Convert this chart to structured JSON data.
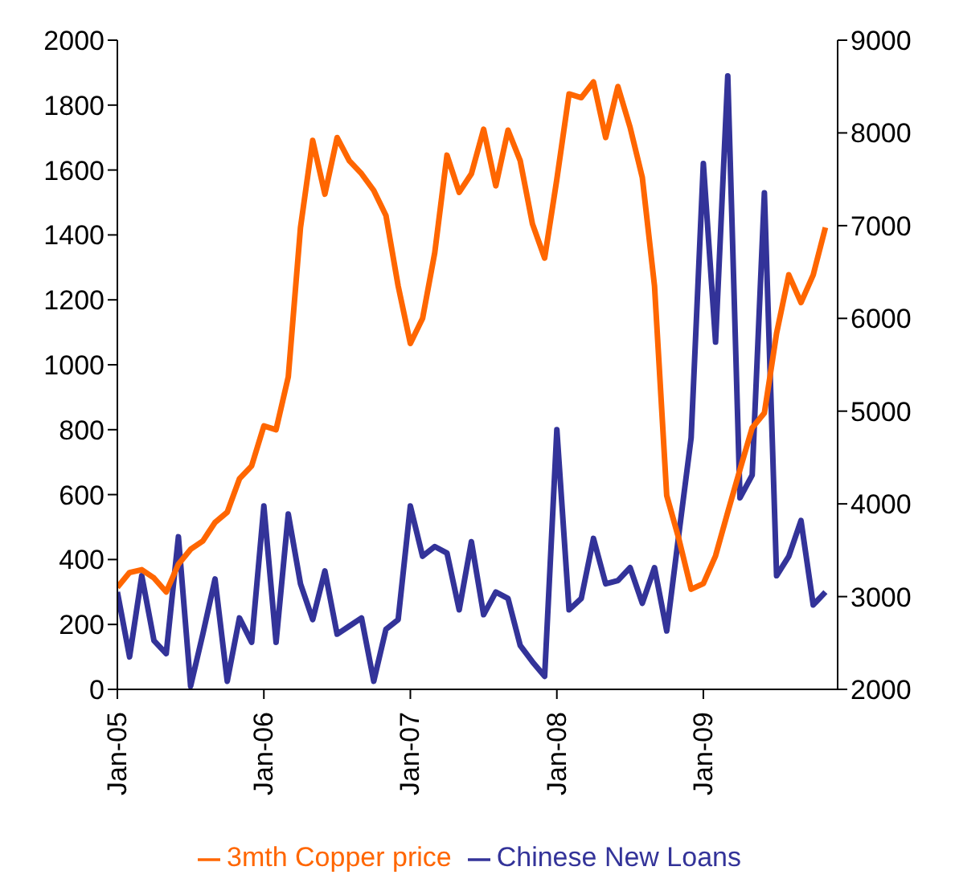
{
  "chart_data": {
    "type": "line",
    "categories": [
      "Jan-05",
      null,
      null,
      null,
      null,
      null,
      null,
      null,
      null,
      null,
      null,
      null,
      "Jan-06",
      null,
      null,
      null,
      null,
      null,
      null,
      null,
      null,
      null,
      null,
      null,
      "Jan-07",
      null,
      null,
      null,
      null,
      null,
      null,
      null,
      null,
      null,
      null,
      null,
      "Jan-08",
      null,
      null,
      null,
      null,
      null,
      null,
      null,
      null,
      null,
      null,
      null,
      "Jan-09",
      null,
      null,
      null,
      null,
      null,
      null,
      null,
      null,
      null,
      null
    ],
    "series": [
      {
        "name": "Chinese New  Loans",
        "color": "#333399",
        "values": [
          300,
          100,
          350,
          150,
          110,
          470,
          10,
          170,
          340,
          25,
          220,
          145,
          565,
          145,
          540,
          325,
          215,
          365,
          170,
          195,
          220,
          25,
          185,
          215,
          565,
          410,
          440,
          420,
          245,
          455,
          230,
          300,
          280,
          135,
          85,
          40,
          800,
          245,
          280,
          465,
          325,
          335,
          375,
          265,
          375,
          180,
          480,
          775,
          1620,
          1070,
          1890,
          590,
          660,
          1530,
          350,
          410,
          520,
          260,
          300
        ]
      },
      {
        "name": "3mth Copper price",
        "color": "#ff6600",
        "axis": "y2",
        "values": [
          3100,
          3260,
          3290,
          3200,
          3050,
          3350,
          3510,
          3600,
          3800,
          3910,
          4270,
          4410,
          4840,
          4800,
          5370,
          6980,
          7920,
          7340,
          7950,
          7700,
          7560,
          7380,
          7110,
          6350,
          5730,
          6000,
          6710,
          7760,
          7360,
          7560,
          8040,
          7430,
          8030,
          7700,
          7020,
          6650,
          7500,
          8420,
          8380,
          8550,
          7950,
          8500,
          8060,
          7520,
          6350,
          4090,
          3620,
          3080,
          3140,
          3440,
          3910,
          4370,
          4820,
          4980,
          5840,
          6470,
          6170,
          6470,
          6980
        ]
      }
    ],
    "ylim": [
      0,
      2000
    ],
    "yticks": [
      0,
      200,
      400,
      600,
      800,
      1000,
      1200,
      1400,
      1600,
      1800,
      2000
    ],
    "y2lim": [
      2000,
      9000
    ],
    "y2ticks": [
      2000,
      3000,
      4000,
      5000,
      6000,
      7000,
      8000,
      9000
    ],
    "legend": "bottom",
    "marker": "none",
    "line_style": "solid"
  }
}
